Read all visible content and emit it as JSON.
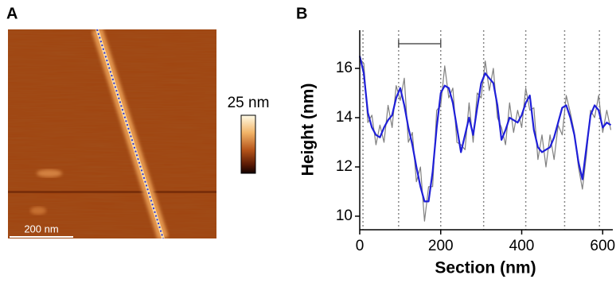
{
  "panel_a": {
    "label": "A",
    "colorbar_label": "25 nm",
    "scale_bar_label": "200 nm"
  },
  "chart_data": {
    "type": "line",
    "panel_label": "B",
    "x_label": "Section (nm)",
    "y_label": "Height (nm)",
    "x": [
      0,
      10,
      20,
      30,
      40,
      50,
      60,
      70,
      80,
      90,
      100,
      110,
      120,
      130,
      140,
      150,
      160,
      170,
      180,
      190,
      200,
      210,
      220,
      230,
      240,
      250,
      260,
      270,
      280,
      290,
      300,
      310,
      320,
      330,
      340,
      350,
      360,
      370,
      380,
      390,
      400,
      410,
      420,
      430,
      440,
      450,
      460,
      470,
      480,
      490,
      500,
      510,
      520,
      530,
      540,
      550,
      560,
      570,
      580,
      590,
      600,
      610,
      620
    ],
    "series": [
      {
        "color": "#808080",
        "values": [
          16.4,
          16.2,
          13.8,
          14.1,
          12.9,
          13.7,
          13.0,
          14.5,
          13.6,
          15.3,
          14.7,
          15.6,
          13.0,
          13.4,
          11.4,
          12.0,
          9.8,
          11.2,
          11.2,
          14.3,
          14.5,
          16.1,
          14.8,
          15.2,
          13.0,
          12.9,
          12.7,
          14.6,
          13.0,
          15.0,
          14.8,
          16.3,
          15.1,
          16.0,
          14.0,
          13.6,
          12.9,
          14.6,
          13.4,
          14.3,
          13.6,
          15.2,
          14.3,
          14.4,
          12.3,
          13.3,
          12.0,
          13.3,
          12.3,
          13.7,
          13.3,
          14.9,
          14.2,
          13.4,
          12.0,
          11.1,
          12.5,
          14.3,
          14.0,
          14.9,
          13.4,
          14.3,
          13.5
        ]
      },
      {
        "color": "#1f1fd8",
        "values": [
          16.5,
          15.8,
          14.2,
          13.6,
          13.3,
          13.2,
          13.6,
          13.9,
          14.1,
          14.8,
          15.2,
          14.5,
          13.6,
          12.9,
          12.0,
          11.2,
          10.6,
          10.6,
          11.8,
          13.6,
          15.0,
          15.3,
          15.2,
          14.6,
          13.6,
          12.6,
          13.3,
          14.0,
          13.3,
          14.4,
          15.4,
          15.8,
          15.6,
          15.4,
          14.5,
          13.1,
          13.5,
          14.0,
          13.9,
          13.8,
          14.1,
          14.6,
          14.9,
          13.5,
          12.8,
          12.6,
          12.7,
          12.8,
          13.2,
          13.8,
          14.4,
          14.5,
          14.0,
          13.3,
          12.2,
          11.5,
          12.8,
          14.1,
          14.5,
          14.3,
          13.6,
          13.8,
          13.7
        ]
      }
    ],
    "section_lines": [
      8,
      96,
      200,
      306,
      410,
      506,
      592
    ],
    "xlim": [
      0,
      625
    ],
    "ylim": [
      9.45,
      17.55
    ],
    "xticks": [
      0,
      200,
      400,
      600
    ],
    "yticks": [
      10,
      12,
      14,
      16
    ]
  }
}
